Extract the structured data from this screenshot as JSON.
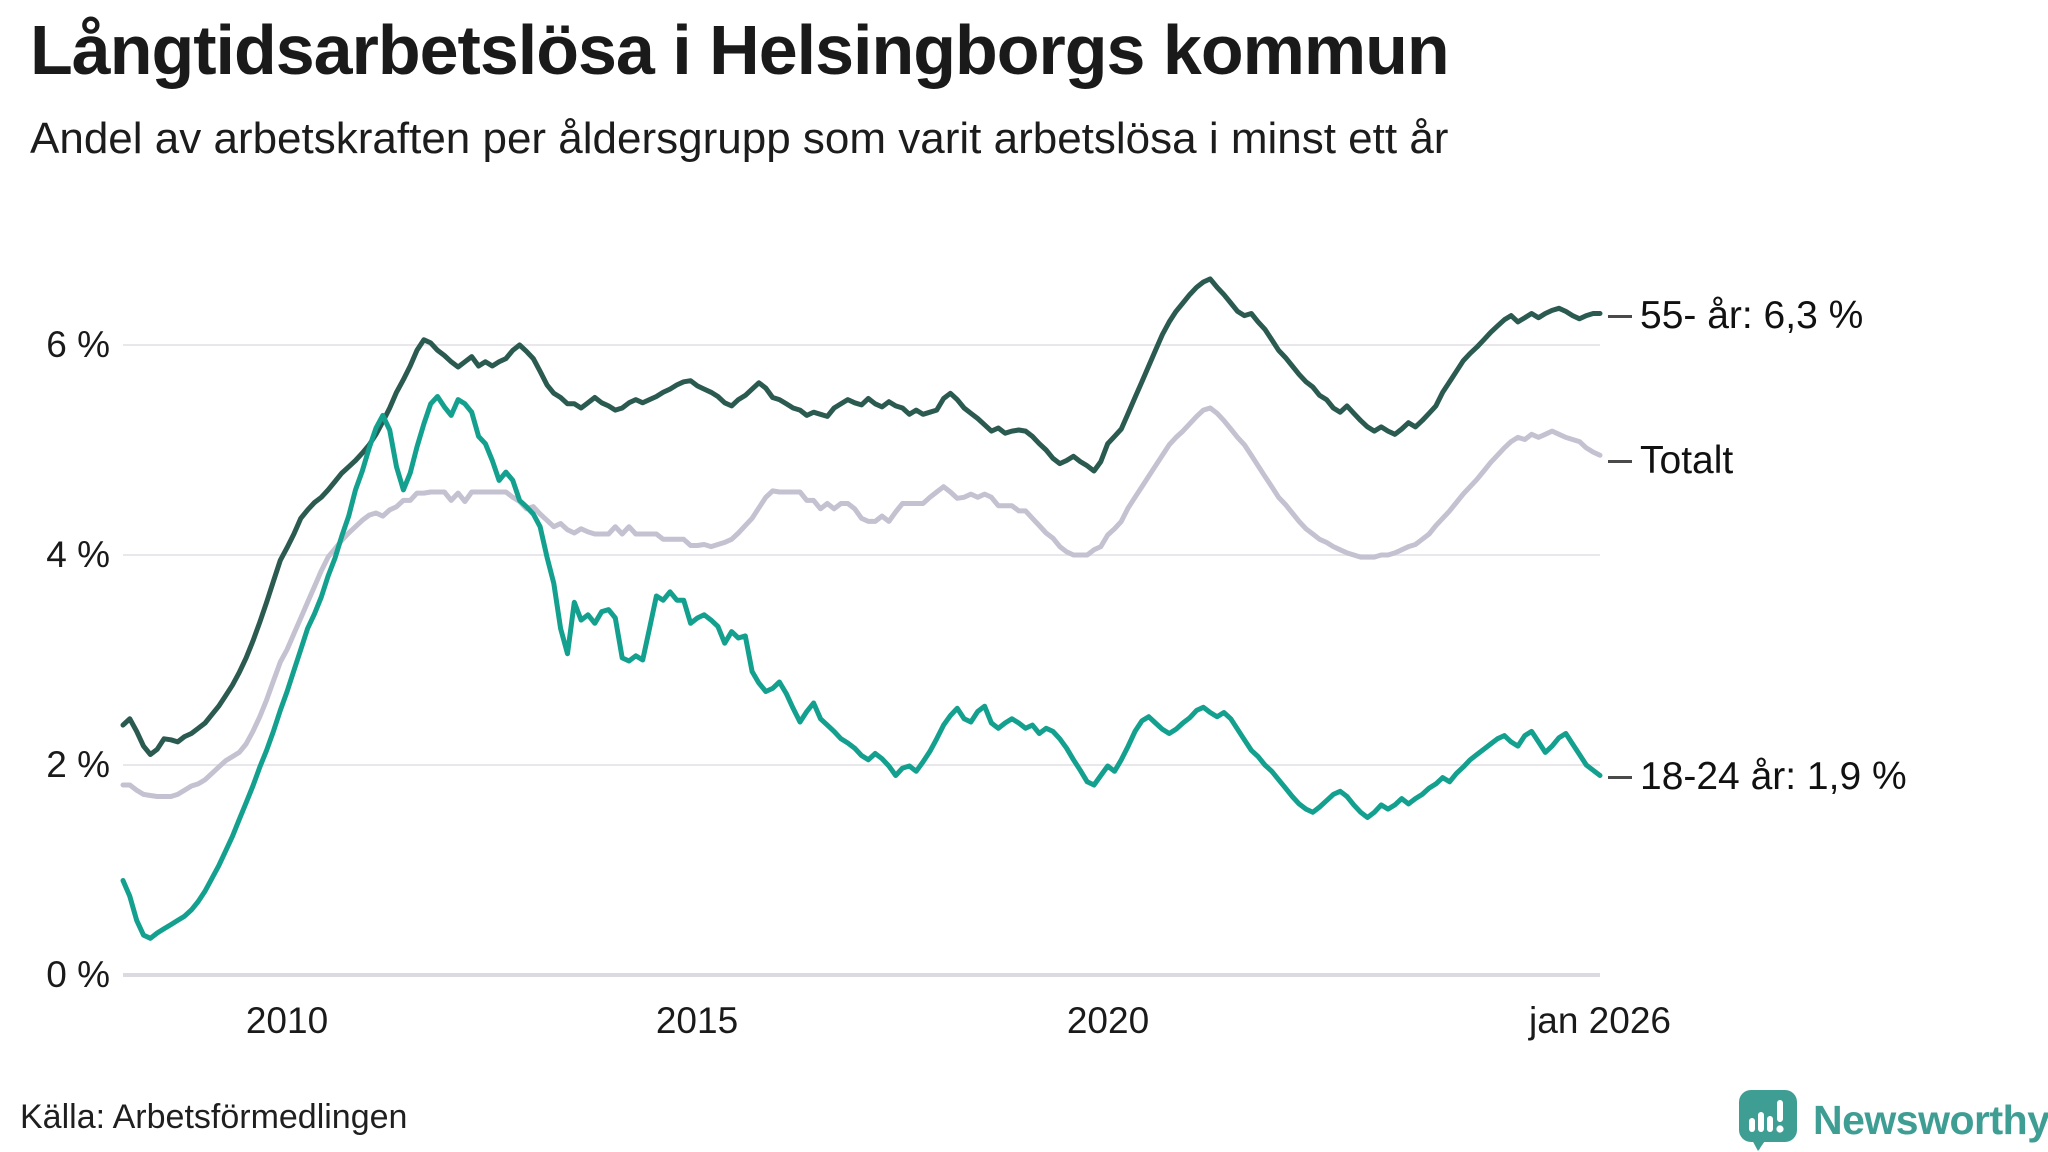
{
  "title": "Långtidsarbetslösa i Helsingborgs kommun",
  "subtitle": "Andel av arbetskraften per åldersgrupp som varit arbetslösa i minst ett år",
  "source": "Källa: Arbetsförmedlingen",
  "brand": {
    "name": "Newsworthy",
    "color": "#3F9E94",
    "icon": "bar-chart-speech-bubble"
  },
  "colors": {
    "series_55": "#2A5A50",
    "series_total": "#C4C1D1",
    "series_18_24": "#14A08E",
    "gridline": "#E8E7EC",
    "zeroline": "#DBDAE0",
    "text": "#1a1a1a"
  },
  "chart_data": {
    "type": "line",
    "title": "Långtidsarbetslösa i Helsingborgs kommun",
    "subtitle": "Andel av arbetskraften per åldersgrupp som varit arbetslösa i minst ett år",
    "x_start": "2008-01",
    "x_end": "2026-01",
    "x_interval": "monthly",
    "xlabel": "",
    "ylabel": "",
    "ylim": [
      0,
      7.0
    ],
    "grid": "horizontal",
    "legend_position": "right-end-labels",
    "y_ticks": [
      {
        "value": 0,
        "label": "0 %"
      },
      {
        "value": 2,
        "label": "2 %"
      },
      {
        "value": 4,
        "label": "4 %"
      },
      {
        "value": 6,
        "label": "6 %"
      }
    ],
    "x_ticks": [
      {
        "label": "2010",
        "month_index": 24
      },
      {
        "label": "2015",
        "month_index": 84
      },
      {
        "label": "2020",
        "month_index": 144
      },
      {
        "label": "jan 2026",
        "month_index": 216
      }
    ],
    "series": [
      {
        "name": "Totalt",
        "end_label": "Totalt",
        "color": "#C4C1D1",
        "final_value": 5.0,
        "values": [
          1.81,
          1.81,
          1.76,
          1.72,
          1.71,
          1.7,
          1.7,
          1.7,
          1.72,
          1.76,
          1.8,
          1.82,
          1.86,
          1.92,
          1.98,
          2.04,
          2.08,
          2.12,
          2.2,
          2.32,
          2.46,
          2.62,
          2.8,
          2.98,
          3.1,
          3.25,
          3.4,
          3.55,
          3.7,
          3.85,
          3.98,
          4.06,
          4.14,
          4.21,
          4.27,
          4.33,
          4.38,
          4.4,
          4.37,
          4.43,
          4.46,
          4.52,
          4.52,
          4.59,
          4.59,
          4.6,
          4.6,
          4.6,
          4.52,
          4.59,
          4.51,
          4.6,
          4.6,
          4.6,
          4.6,
          4.6,
          4.6,
          4.55,
          4.51,
          4.44,
          4.46,
          4.39,
          4.33,
          4.27,
          4.3,
          4.24,
          4.21,
          4.25,
          4.22,
          4.2,
          4.2,
          4.2,
          4.27,
          4.2,
          4.27,
          4.2,
          4.2,
          4.2,
          4.2,
          4.15,
          4.15,
          4.15,
          4.15,
          4.09,
          4.09,
          4.1,
          4.08,
          4.1,
          4.12,
          4.15,
          4.21,
          4.28,
          4.35,
          4.45,
          4.55,
          4.61,
          4.6,
          4.6,
          4.6,
          4.6,
          4.52,
          4.52,
          4.44,
          4.49,
          4.44,
          4.49,
          4.49,
          4.44,
          4.35,
          4.32,
          4.32,
          4.37,
          4.32,
          4.41,
          4.49,
          4.49,
          4.49,
          4.49,
          4.55,
          4.6,
          4.65,
          4.6,
          4.54,
          4.55,
          4.58,
          4.55,
          4.58,
          4.55,
          4.47,
          4.47,
          4.47,
          4.42,
          4.42,
          4.35,
          4.28,
          4.21,
          4.16,
          4.08,
          4.03,
          4.0,
          4.0,
          4.0,
          4.05,
          4.08,
          4.19,
          4.25,
          4.32,
          4.45,
          4.55,
          4.65,
          4.75,
          4.85,
          4.95,
          5.05,
          5.12,
          5.18,
          5.25,
          5.32,
          5.38,
          5.4,
          5.35,
          5.28,
          5.2,
          5.12,
          5.05,
          4.95,
          4.85,
          4.75,
          4.65,
          4.55,
          4.48,
          4.4,
          4.32,
          4.25,
          4.2,
          4.15,
          4.12,
          4.08,
          4.05,
          4.02,
          4.0,
          3.98,
          3.98,
          3.98,
          4.0,
          4.0,
          4.02,
          4.05,
          4.08,
          4.1,
          4.15,
          4.2,
          4.28,
          4.35,
          4.42,
          4.5,
          4.58,
          4.65,
          4.72,
          4.8,
          4.88,
          4.95,
          5.02,
          5.08,
          5.12,
          5.1,
          5.15,
          5.12,
          5.15,
          5.18,
          5.15,
          5.12,
          5.1,
          5.08,
          5.02,
          4.98,
          4.95
        ]
      },
      {
        "name": "55- år",
        "end_label": "55- år: 6,3 %",
        "color": "#2A5A50",
        "final_value": 6.3,
        "values": [
          2.38,
          2.44,
          2.32,
          2.18,
          2.1,
          2.15,
          2.25,
          2.24,
          2.22,
          2.27,
          2.3,
          2.35,
          2.4,
          2.48,
          2.56,
          2.66,
          2.76,
          2.88,
          3.02,
          3.18,
          3.36,
          3.55,
          3.75,
          3.95,
          4.07,
          4.2,
          4.35,
          4.43,
          4.5,
          4.55,
          4.62,
          4.7,
          4.78,
          4.84,
          4.9,
          4.97,
          5.05,
          5.15,
          5.27,
          5.4,
          5.55,
          5.67,
          5.8,
          5.95,
          6.05,
          6.02,
          5.95,
          5.9,
          5.84,
          5.79,
          5.84,
          5.89,
          5.8,
          5.84,
          5.8,
          5.84,
          5.87,
          5.95,
          6.0,
          5.94,
          5.87,
          5.75,
          5.62,
          5.54,
          5.5,
          5.44,
          5.44,
          5.4,
          5.45,
          5.5,
          5.45,
          5.42,
          5.38,
          5.4,
          5.45,
          5.48,
          5.45,
          5.48,
          5.51,
          5.55,
          5.58,
          5.62,
          5.65,
          5.66,
          5.61,
          5.58,
          5.55,
          5.51,
          5.45,
          5.42,
          5.48,
          5.52,
          5.58,
          5.64,
          5.59,
          5.5,
          5.48,
          5.44,
          5.4,
          5.38,
          5.33,
          5.36,
          5.34,
          5.32,
          5.4,
          5.44,
          5.48,
          5.45,
          5.43,
          5.49,
          5.44,
          5.41,
          5.46,
          5.42,
          5.4,
          5.34,
          5.38,
          5.34,
          5.36,
          5.38,
          5.49,
          5.54,
          5.48,
          5.4,
          5.35,
          5.3,
          5.24,
          5.18,
          5.21,
          5.16,
          5.18,
          5.19,
          5.18,
          5.13,
          5.06,
          5.0,
          4.92,
          4.87,
          4.9,
          4.94,
          4.89,
          4.85,
          4.8,
          4.89,
          5.06,
          5.13,
          5.2,
          5.35,
          5.5,
          5.65,
          5.8,
          5.95,
          6.1,
          6.22,
          6.32,
          6.4,
          6.48,
          6.55,
          6.6,
          6.63,
          6.55,
          6.48,
          6.4,
          6.32,
          6.28,
          6.3,
          6.22,
          6.15,
          6.05,
          5.95,
          5.88,
          5.8,
          5.72,
          5.65,
          5.6,
          5.52,
          5.48,
          5.4,
          5.36,
          5.42,
          5.35,
          5.28,
          5.22,
          5.18,
          5.22,
          5.18,
          5.15,
          5.2,
          5.26,
          5.22,
          5.28,
          5.35,
          5.42,
          5.55,
          5.65,
          5.75,
          5.85,
          5.92,
          5.98,
          6.05,
          6.12,
          6.18,
          6.24,
          6.28,
          6.22,
          6.26,
          6.3,
          6.26,
          6.3,
          6.33,
          6.35,
          6.32,
          6.28,
          6.25,
          6.28,
          6.3,
          6.3
        ]
      },
      {
        "name": "18-24 år",
        "end_label": "18-24 år: 1,9 %",
        "color": "#14A08E",
        "final_value": 1.9,
        "values": [
          0.9,
          0.75,
          0.52,
          0.38,
          0.35,
          0.4,
          0.44,
          0.48,
          0.52,
          0.56,
          0.62,
          0.7,
          0.8,
          0.92,
          1.04,
          1.18,
          1.32,
          1.48,
          1.64,
          1.8,
          1.98,
          2.14,
          2.32,
          2.52,
          2.7,
          2.9,
          3.1,
          3.3,
          3.44,
          3.6,
          3.8,
          3.97,
          4.18,
          4.37,
          4.62,
          4.8,
          5.02,
          5.21,
          5.33,
          5.19,
          4.84,
          4.62,
          4.78,
          5.03,
          5.25,
          5.44,
          5.51,
          5.41,
          5.33,
          5.48,
          5.44,
          5.36,
          5.13,
          5.06,
          4.9,
          4.71,
          4.79,
          4.71,
          4.52,
          4.46,
          4.39,
          4.27,
          3.98,
          3.73,
          3.3,
          3.06,
          3.55,
          3.38,
          3.43,
          3.35,
          3.46,
          3.48,
          3.4,
          3.02,
          2.99,
          3.04,
          3.0,
          3.3,
          3.61,
          3.57,
          3.65,
          3.57,
          3.57,
          3.35,
          3.4,
          3.43,
          3.38,
          3.32,
          3.16,
          3.27,
          3.21,
          3.23,
          2.89,
          2.78,
          2.7,
          2.73,
          2.79,
          2.68,
          2.54,
          2.41,
          2.51,
          2.59,
          2.44,
          2.38,
          2.32,
          2.25,
          2.21,
          2.16,
          2.09,
          2.05,
          2.11,
          2.06,
          1.99,
          1.9,
          1.97,
          1.99,
          1.94,
          2.03,
          2.13,
          2.25,
          2.38,
          2.47,
          2.54,
          2.44,
          2.41,
          2.51,
          2.56,
          2.4,
          2.35,
          2.4,
          2.44,
          2.4,
          2.35,
          2.38,
          2.3,
          2.35,
          2.32,
          2.25,
          2.16,
          2.05,
          1.95,
          1.84,
          1.81,
          1.9,
          1.99,
          1.94,
          2.05,
          2.18,
          2.32,
          2.42,
          2.46,
          2.4,
          2.34,
          2.3,
          2.34,
          2.4,
          2.45,
          2.52,
          2.55,
          2.5,
          2.46,
          2.5,
          2.44,
          2.34,
          2.24,
          2.14,
          2.08,
          2.0,
          1.94,
          1.86,
          1.78,
          1.7,
          1.63,
          1.58,
          1.55,
          1.6,
          1.66,
          1.72,
          1.75,
          1.7,
          1.62,
          1.55,
          1.5,
          1.55,
          1.62,
          1.58,
          1.62,
          1.68,
          1.63,
          1.68,
          1.72,
          1.78,
          1.82,
          1.88,
          1.84,
          1.92,
          1.98,
          2.05,
          2.1,
          2.15,
          2.2,
          2.25,
          2.28,
          2.22,
          2.18,
          2.28,
          2.32,
          2.22,
          2.12,
          2.18,
          2.26,
          2.3,
          2.2,
          2.1,
          2.0,
          1.95,
          1.9
        ]
      }
    ]
  }
}
